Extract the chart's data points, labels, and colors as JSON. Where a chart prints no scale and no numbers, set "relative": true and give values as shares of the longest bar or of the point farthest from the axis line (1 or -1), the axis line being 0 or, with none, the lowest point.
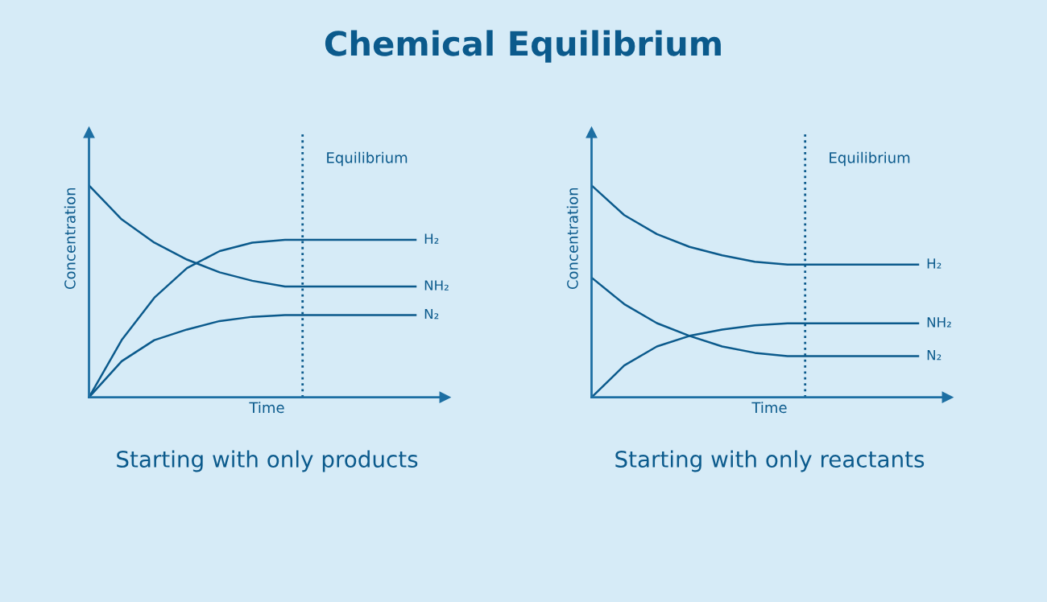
{
  "chart_data": [
    {
      "type": "line",
      "relative": true,
      "title": "Chemical Equilibrium",
      "subtitle": "Starting with only products",
      "xlabel": "Time",
      "ylabel": "Concentration",
      "legend": false,
      "marker": "none",
      "line_style": "solid",
      "categories": [
        null,
        null,
        null,
        null,
        null,
        null,
        null,
        null,
        null,
        null,
        null
      ],
      "annotations": [
        "Equilibrium"
      ],
      "series": [
        {
          "name": "H₂",
          "color": "#0b5a8c",
          "values": [
            0,
            0.27,
            0.47,
            0.61,
            0.69,
            0.73,
            0.743,
            0.743,
            0.743,
            0.743,
            0.743
          ]
        },
        {
          "name": "NH₂",
          "color": "#0b5a8c",
          "values": [
            1,
            0.84,
            0.73,
            0.65,
            0.59,
            0.55,
            0.523,
            0.523,
            0.523,
            0.523,
            0.523
          ]
        },
        {
          "name": "N₂",
          "color": "#0b5a8c",
          "values": [
            0,
            0.17,
            0.27,
            0.32,
            0.36,
            0.38,
            0.388,
            0.388,
            0.388,
            0.388,
            0.388
          ]
        }
      ]
    },
    {
      "type": "line",
      "relative": true,
      "subtitle": "Starting with only reactants",
      "xlabel": "Time",
      "ylabel": "Concentration",
      "legend": false,
      "marker": "none",
      "line_style": "solid",
      "categories": [
        null,
        null,
        null,
        null,
        null,
        null,
        null,
        null,
        null,
        null,
        null
      ],
      "annotations": [
        "Equilibrium"
      ],
      "series": [
        {
          "name": "H₂",
          "color": "#0b5a8c",
          "values": [
            1,
            0.86,
            0.77,
            0.71,
            0.67,
            0.64,
            0.626,
            0.626,
            0.626,
            0.626,
            0.626
          ]
        },
        {
          "name": "NH₂",
          "color": "#0b5a8c",
          "values": [
            0,
            0.15,
            0.24,
            0.29,
            0.32,
            0.34,
            0.349,
            0.349,
            0.349,
            0.349,
            0.349
          ]
        },
        {
          "name": "N₂",
          "color": "#0b5a8c",
          "values": [
            0.565,
            0.44,
            0.35,
            0.29,
            0.24,
            0.21,
            0.194,
            0.194,
            0.194,
            0.194,
            0.194
          ]
        }
      ]
    }
  ]
}
